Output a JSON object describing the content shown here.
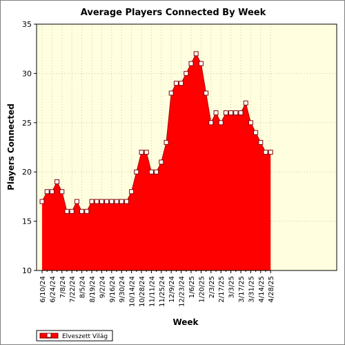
{
  "chart_data": {
    "type": "area",
    "title": "Average Players Connected By Week",
    "xlabel": "Week",
    "ylabel": "Players Connected",
    "ylim": [
      10,
      35
    ],
    "yticks": [
      10,
      15,
      20,
      25,
      30,
      35
    ],
    "grid": true,
    "legend_position": "bottom-left",
    "x_tick_labels": [
      "6/10/24",
      "6/24/24",
      "7/8/24",
      "7/22/24",
      "8/5/24",
      "8/19/24",
      "9/2/24",
      "9/16/24",
      "9/30/24",
      "10/14/24",
      "10/28/24",
      "11/11/24",
      "11/25/24",
      "12/9/24",
      "12/23/24",
      "1/6/25",
      "1/20/25",
      "2/3/25",
      "2/17/25",
      "3/3/25",
      "3/17/25",
      "3/31/25",
      "4/14/25",
      "4/28/25"
    ],
    "x": [
      "6/10/24",
      "6/17/24",
      "6/24/24",
      "7/1/24",
      "7/8/24",
      "7/15/24",
      "7/22/24",
      "7/29/24",
      "8/5/24",
      "8/12/24",
      "8/19/24",
      "8/26/24",
      "9/2/24",
      "9/9/24",
      "9/16/24",
      "9/23/24",
      "9/30/24",
      "10/7/24",
      "10/14/24",
      "10/21/24",
      "10/28/24",
      "11/4/24",
      "11/11/24",
      "11/18/24",
      "11/25/24",
      "12/2/24",
      "12/9/24",
      "12/16/24",
      "12/23/24",
      "12/30/24",
      "1/6/25",
      "1/13/25",
      "1/20/25",
      "1/27/25",
      "2/3/25",
      "2/10/25",
      "2/17/25",
      "2/24/25",
      "3/3/25",
      "3/10/25",
      "3/17/25",
      "3/24/25",
      "3/31/25",
      "4/7/25",
      "4/14/25",
      "4/21/25",
      "4/28/25"
    ],
    "series": [
      {
        "name": "Elveszett Világ",
        "color": "#ff0000",
        "values": [
          17,
          18,
          18,
          19,
          18,
          16,
          16,
          17,
          16,
          16,
          17,
          17,
          17,
          17,
          17,
          17,
          17,
          17,
          18,
          20,
          22,
          22,
          20,
          20,
          21,
          23,
          28,
          29,
          29,
          30,
          31,
          32,
          31,
          28,
          25,
          26,
          25,
          26,
          26,
          26,
          26,
          27,
          25,
          24,
          23,
          22,
          22
        ]
      }
    ],
    "colors": {
      "plot_background": "#ffffe0",
      "fill": "#ff0000",
      "marker_fill": "#ffffff",
      "marker_stroke": "#800000"
    }
  }
}
